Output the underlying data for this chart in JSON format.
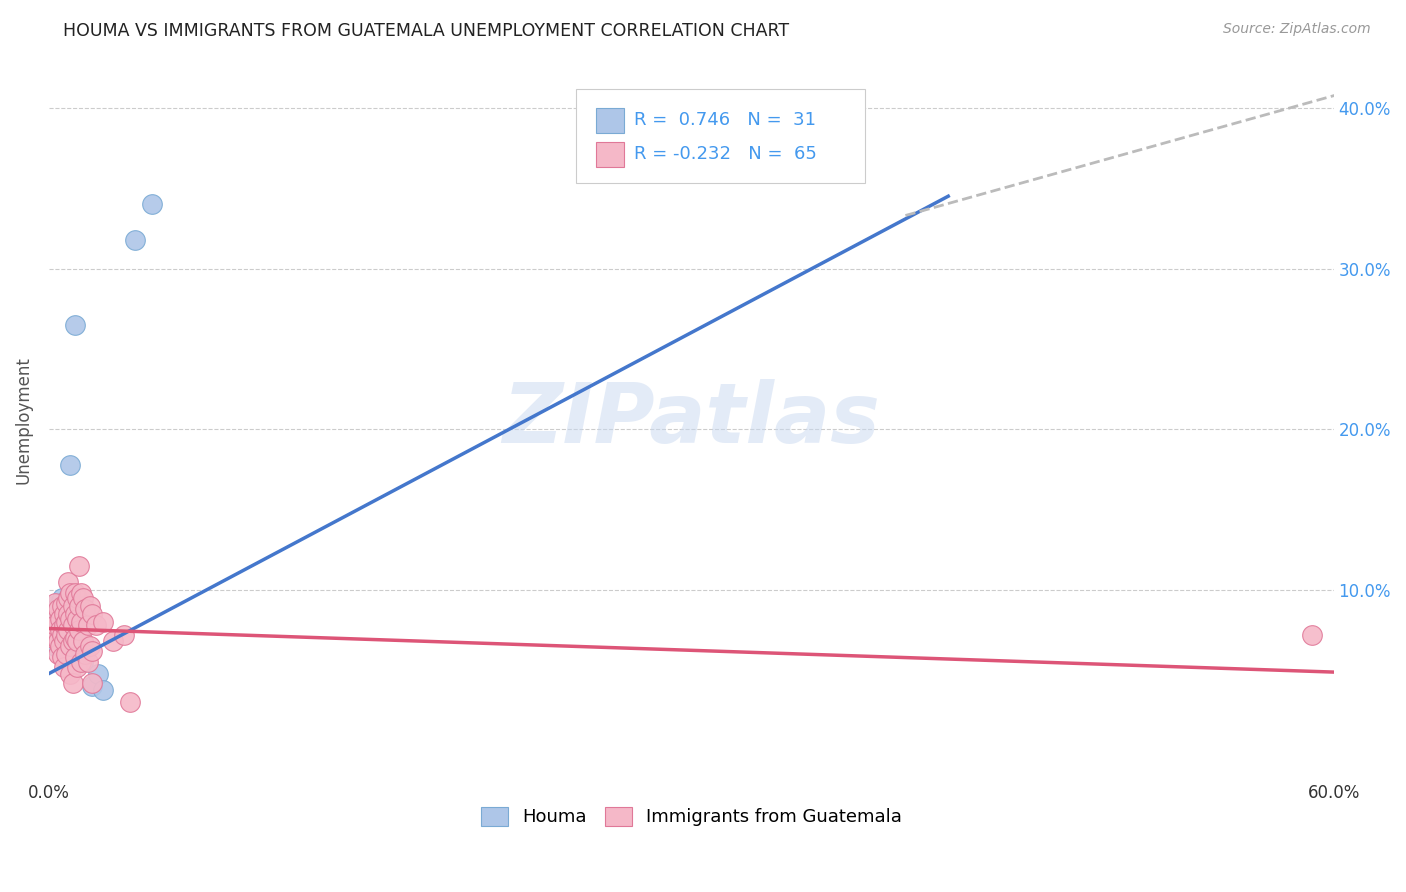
{
  "title": "HOUMA VS IMMIGRANTS FROM GUATEMALA UNEMPLOYMENT CORRELATION CHART",
  "source": "Source: ZipAtlas.com",
  "ylabel": "Unemployment",
  "xlim": [
    0,
    0.6
  ],
  "ylim": [
    -0.018,
    0.43
  ],
  "houma_color": "#aec6e8",
  "houma_edge": "#7aaad4",
  "guatemala_color": "#f5b8c8",
  "guatemala_edge": "#e07898",
  "trend_blue": "#4477cc",
  "trend_pink": "#dd5577",
  "trend_gray": "#bbbbbb",
  "R_houma": 0.746,
  "N_houma": 31,
  "R_guatemala": -0.232,
  "N_guatemala": 65,
  "legend_label_houma": "Houma",
  "legend_label_guatemala": "Immigrants from Guatemala",
  "watermark": "ZIPatlas",
  "blue_line": [
    [
      0.0,
      0.048
    ],
    [
      0.42,
      0.345
    ]
  ],
  "gray_line": [
    [
      0.4,
      0.333
    ],
    [
      0.62,
      0.415
    ]
  ],
  "pink_line": [
    [
      0.0,
      0.076
    ],
    [
      0.62,
      0.048
    ]
  ],
  "houma_points": [
    [
      0.001,
      0.082
    ],
    [
      0.002,
      0.075
    ],
    [
      0.002,
      0.09
    ],
    [
      0.003,
      0.078
    ],
    [
      0.003,
      0.065
    ],
    [
      0.003,
      0.088
    ],
    [
      0.004,
      0.085
    ],
    [
      0.004,
      0.073
    ],
    [
      0.005,
      0.092
    ],
    [
      0.005,
      0.082
    ],
    [
      0.006,
      0.068
    ],
    [
      0.006,
      0.095
    ],
    [
      0.007,
      0.08
    ],
    [
      0.007,
      0.072
    ],
    [
      0.008,
      0.085
    ],
    [
      0.008,
      0.068
    ],
    [
      0.009,
      0.095
    ],
    [
      0.009,
      0.06
    ],
    [
      0.01,
      0.088
    ],
    [
      0.011,
      0.08
    ],
    [
      0.012,
      0.073
    ],
    [
      0.013,
      0.065
    ],
    [
      0.015,
      0.058
    ],
    [
      0.016,
      0.055
    ],
    [
      0.02,
      0.04
    ],
    [
      0.023,
      0.048
    ],
    [
      0.025,
      0.038
    ],
    [
      0.01,
      0.178
    ],
    [
      0.012,
      0.265
    ],
    [
      0.04,
      0.318
    ],
    [
      0.048,
      0.34
    ]
  ],
  "guatemala_points": [
    [
      0.001,
      0.075
    ],
    [
      0.002,
      0.07
    ],
    [
      0.002,
      0.082
    ],
    [
      0.003,
      0.092
    ],
    [
      0.003,
      0.078
    ],
    [
      0.004,
      0.088
    ],
    [
      0.004,
      0.068
    ],
    [
      0.004,
      0.06
    ],
    [
      0.005,
      0.082
    ],
    [
      0.005,
      0.075
    ],
    [
      0.005,
      0.065
    ],
    [
      0.006,
      0.09
    ],
    [
      0.006,
      0.072
    ],
    [
      0.006,
      0.058
    ],
    [
      0.007,
      0.085
    ],
    [
      0.007,
      0.078
    ],
    [
      0.007,
      0.068
    ],
    [
      0.007,
      0.052
    ],
    [
      0.008,
      0.092
    ],
    [
      0.008,
      0.08
    ],
    [
      0.008,
      0.072
    ],
    [
      0.008,
      0.06
    ],
    [
      0.009,
      0.105
    ],
    [
      0.009,
      0.095
    ],
    [
      0.009,
      0.085
    ],
    [
      0.009,
      0.075
    ],
    [
      0.01,
      0.098
    ],
    [
      0.01,
      0.082
    ],
    [
      0.01,
      0.065
    ],
    [
      0.01,
      0.048
    ],
    [
      0.011,
      0.09
    ],
    [
      0.011,
      0.078
    ],
    [
      0.011,
      0.068
    ],
    [
      0.011,
      0.042
    ],
    [
      0.012,
      0.098
    ],
    [
      0.012,
      0.085
    ],
    [
      0.012,
      0.07
    ],
    [
      0.012,
      0.058
    ],
    [
      0.013,
      0.095
    ],
    [
      0.013,
      0.082
    ],
    [
      0.013,
      0.068
    ],
    [
      0.013,
      0.052
    ],
    [
      0.014,
      0.115
    ],
    [
      0.014,
      0.09
    ],
    [
      0.014,
      0.075
    ],
    [
      0.015,
      0.098
    ],
    [
      0.015,
      0.08
    ],
    [
      0.015,
      0.055
    ],
    [
      0.016,
      0.095
    ],
    [
      0.016,
      0.068
    ],
    [
      0.017,
      0.088
    ],
    [
      0.017,
      0.06
    ],
    [
      0.018,
      0.078
    ],
    [
      0.018,
      0.055
    ],
    [
      0.019,
      0.09
    ],
    [
      0.019,
      0.065
    ],
    [
      0.02,
      0.085
    ],
    [
      0.02,
      0.062
    ],
    [
      0.02,
      0.042
    ],
    [
      0.022,
      0.078
    ],
    [
      0.025,
      0.08
    ],
    [
      0.03,
      0.068
    ],
    [
      0.035,
      0.072
    ],
    [
      0.038,
      0.03
    ],
    [
      0.59,
      0.072
    ]
  ]
}
